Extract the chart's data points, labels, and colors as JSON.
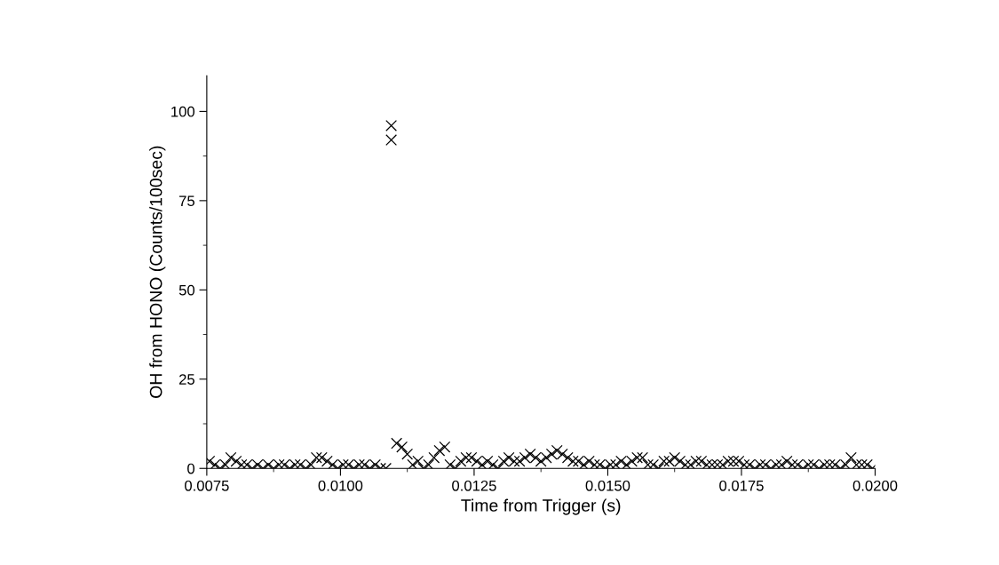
{
  "chart_data": {
    "type": "scatter",
    "xlabel": "Time from Trigger (s)",
    "ylabel": "OH from HONO (Counts/100sec)",
    "marker": "cross",
    "grid": false,
    "xlim": [
      0.0075,
      0.02
    ],
    "xticks": [
      0.0075,
      {
        "value": 0.01,
        "label": "0.0100"
      },
      0.0125,
      {
        "value": 0.015,
        "label": "0.0150"
      },
      0.0175,
      {
        "value": 0.02,
        "label": "0.0200"
      }
    ],
    "ylim": [
      0,
      110
    ],
    "yticks": [
      0,
      25,
      50,
      75,
      100
    ],
    "series": [
      {
        "color": "#000000",
        "x": [
          0.00755,
          0.00765,
          0.00775,
          0.00785,
          0.00795,
          0.00805,
          0.00815,
          0.00825,
          0.00835,
          0.00845,
          0.00855,
          0.00865,
          0.00875,
          0.00885,
          0.00895,
          0.00905,
          0.00915,
          0.00925,
          0.00935,
          0.00945,
          0.00955,
          0.00965,
          0.00975,
          0.00985,
          0.00995,
          0.01005,
          0.01015,
          0.01025,
          0.01035,
          0.01045,
          0.01055,
          0.01065,
          0.01075,
          0.01085,
          0.01095,
          0.01095,
          0.01105,
          0.01115,
          0.01125,
          0.01135,
          0.01145,
          0.01155,
          0.01165,
          0.01175,
          0.01185,
          0.01195,
          0.01205,
          0.01215,
          0.01225,
          0.01235,
          0.01245,
          0.01255,
          0.01265,
          0.01275,
          0.01285,
          0.01295,
          0.01305,
          0.01315,
          0.01325,
          0.01335,
          0.01345,
          0.01355,
          0.01365,
          0.01375,
          0.01385,
          0.01395,
          0.01405,
          0.01415,
          0.01425,
          0.01435,
          0.01445,
          0.01455,
          0.01465,
          0.01475,
          0.01485,
          0.01495,
          0.01505,
          0.01515,
          0.01525,
          0.01535,
          0.01545,
          0.01555,
          0.01565,
          0.01575,
          0.01585,
          0.01595,
          0.01605,
          0.01615,
          0.01625,
          0.01635,
          0.01645,
          0.01655,
          0.01665,
          0.01675,
          0.01685,
          0.01695,
          0.01705,
          0.01715,
          0.01725,
          0.01735,
          0.01745,
          0.01755,
          0.01765,
          0.01775,
          0.01785,
          0.01795,
          0.01805,
          0.01815,
          0.01825,
          0.01835,
          0.01845,
          0.01855,
          0.01865,
          0.01875,
          0.01885,
          0.01895,
          0.01905,
          0.01915,
          0.01925,
          0.01935,
          0.01945,
          0.01955,
          0.01965,
          0.01975,
          0.01985,
          0.01995
        ],
        "values": [
          2,
          1,
          0,
          1,
          3,
          2,
          1,
          1,
          0,
          1,
          0,
          1,
          0,
          1,
          1,
          0,
          1,
          1,
          0,
          1,
          3,
          3,
          2,
          1,
          0,
          1,
          1,
          0,
          1,
          1,
          0,
          1,
          0,
          0,
          92,
          96,
          7,
          6,
          4,
          1,
          2,
          0,
          1,
          3,
          5,
          6,
          1,
          0,
          2,
          3,
          3,
          2,
          1,
          2,
          1,
          0,
          2,
          3,
          2,
          2,
          3,
          4,
          3,
          2,
          3,
          4,
          5,
          4,
          3,
          2,
          2,
          1,
          2,
          1,
          1,
          0,
          1,
          1,
          2,
          1,
          2,
          3,
          3,
          1,
          1,
          0,
          2,
          2,
          3,
          2,
          1,
          1,
          2,
          2,
          1,
          1,
          1,
          1,
          2,
          2,
          2,
          1,
          1,
          0,
          1,
          1,
          0,
          1,
          1,
          2,
          1,
          1,
          0,
          1,
          1,
          0,
          1,
          1,
          1,
          0,
          1,
          3,
          1,
          1,
          1,
          0
        ]
      }
    ]
  }
}
